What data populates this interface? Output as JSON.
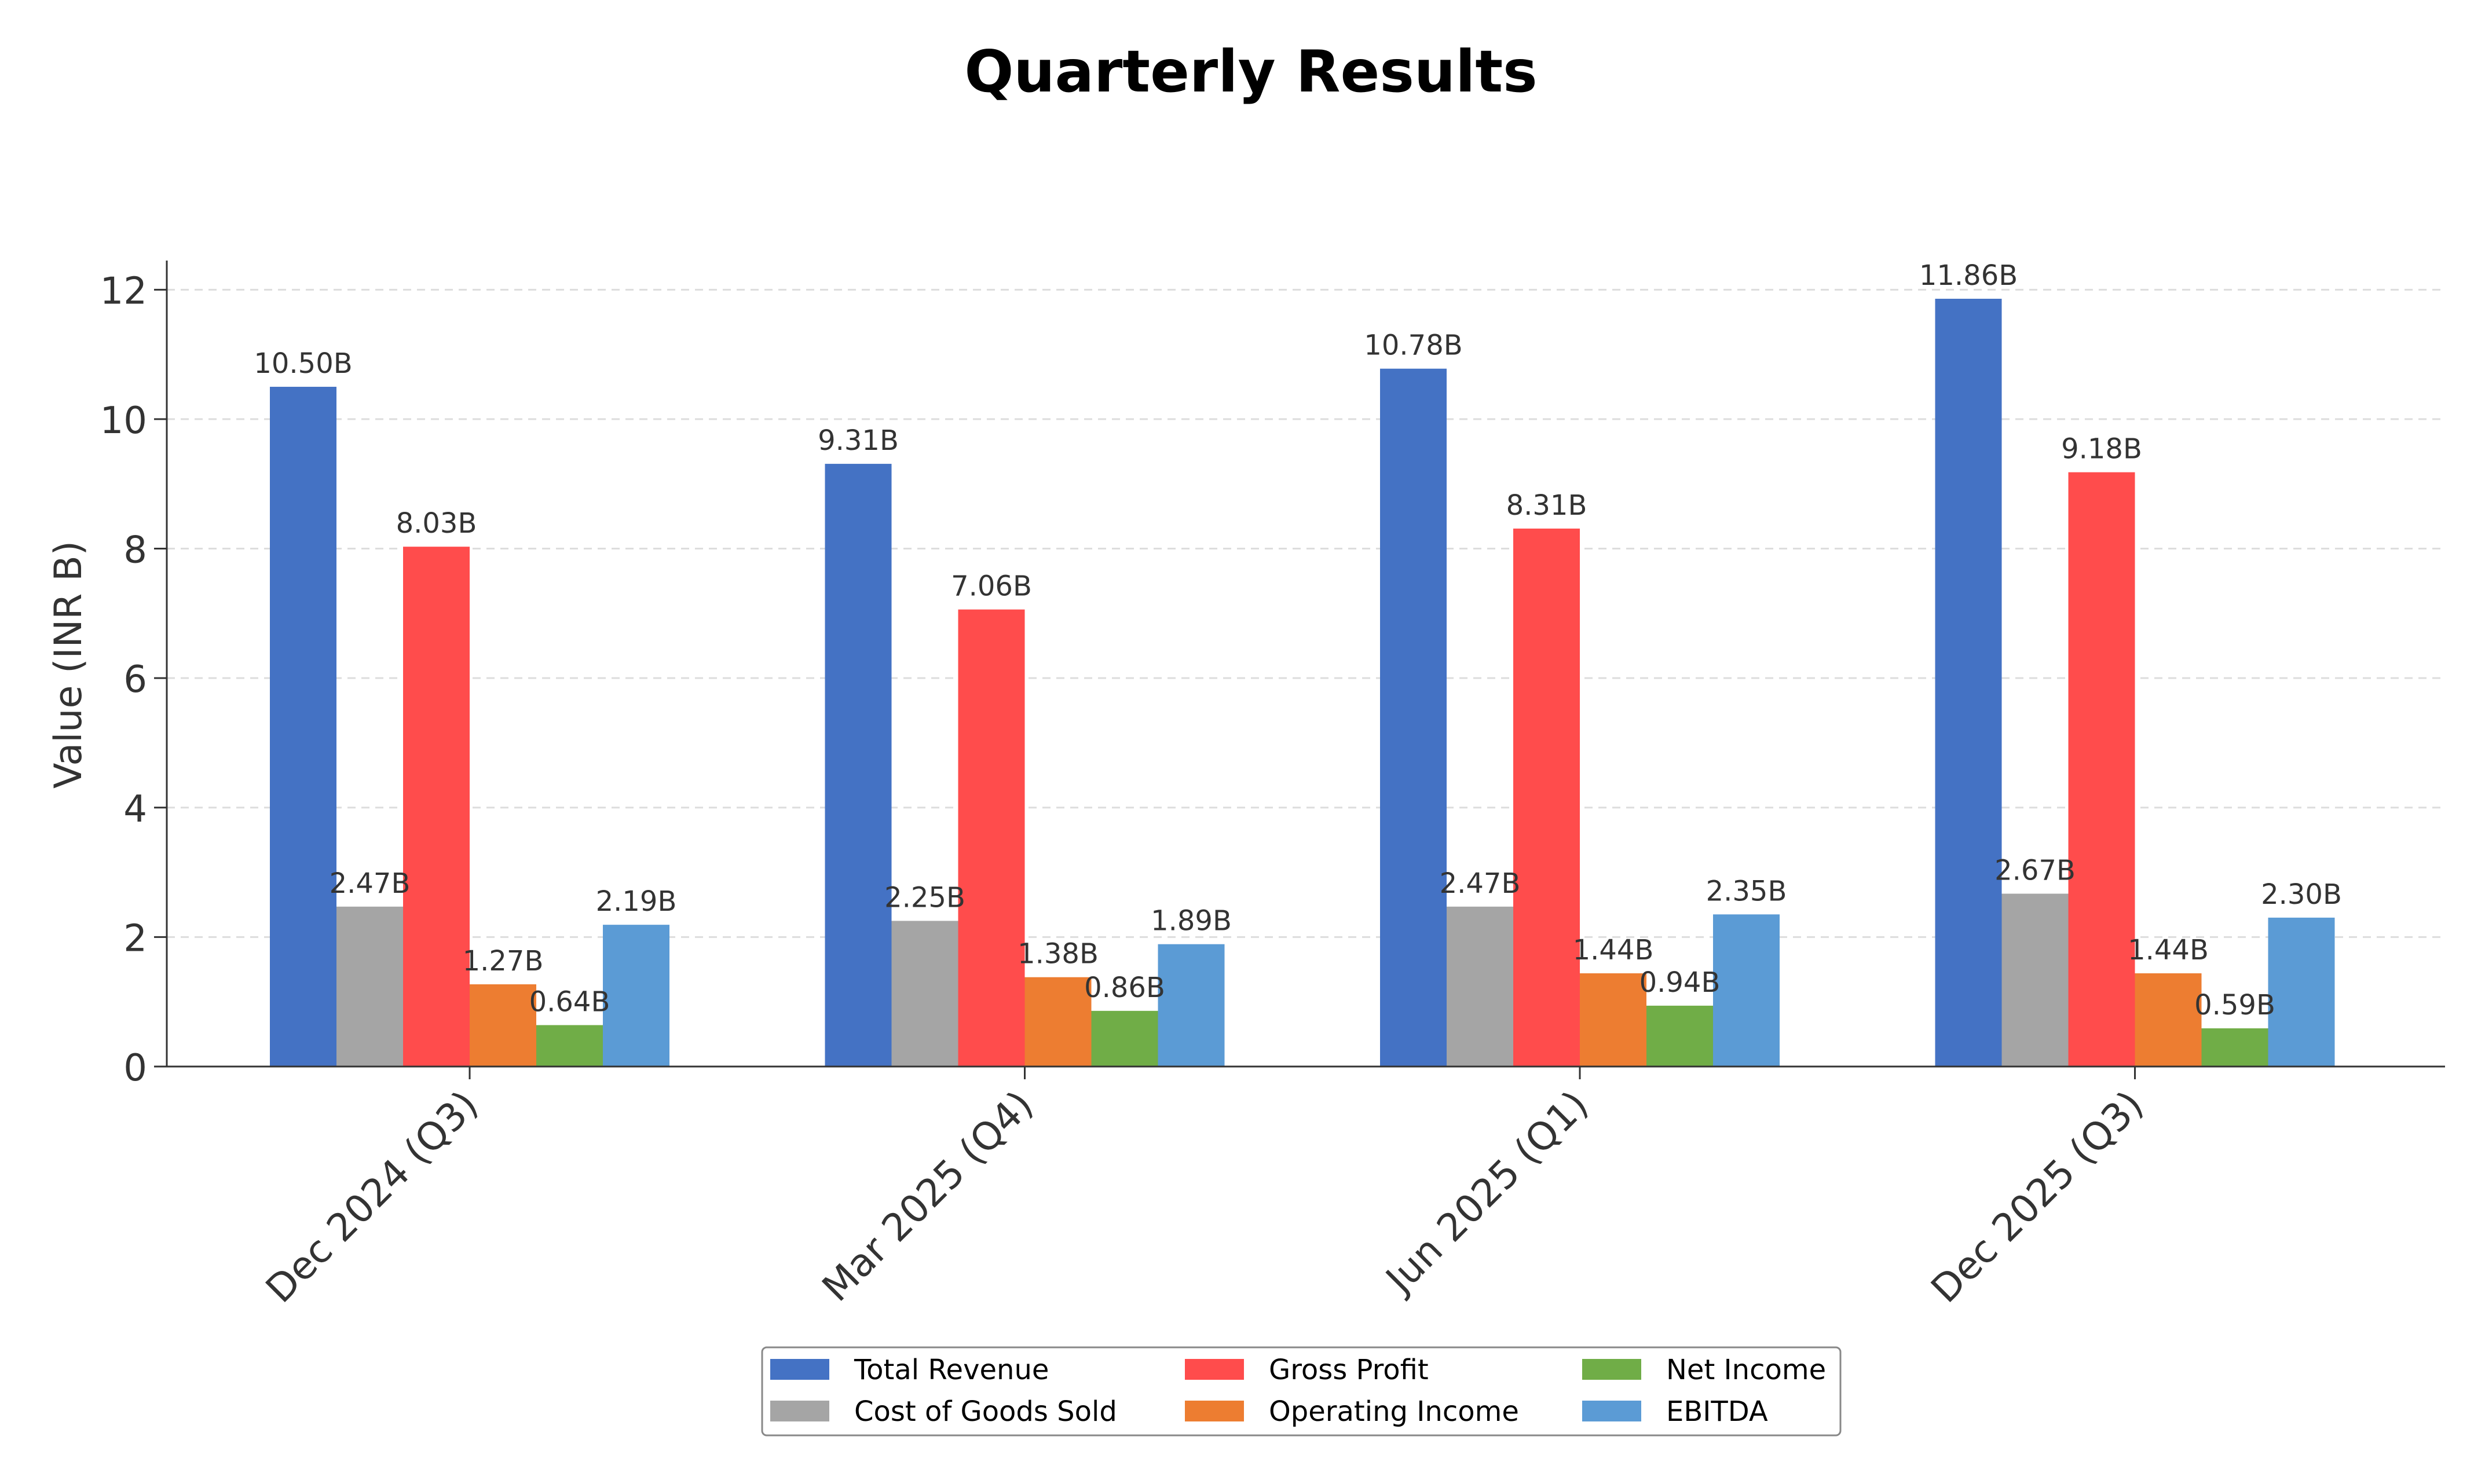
{
  "chart_data": {
    "type": "bar",
    "title": "Quarterly Results",
    "xlabel": "",
    "ylabel": "Value (INR B)",
    "ylim": [
      0,
      12.45
    ],
    "yticks": [
      0,
      2,
      4,
      6,
      8,
      10,
      12
    ],
    "grid": "horizontal dashed",
    "legend_position": "bottom-center",
    "categories": [
      "Dec 2024 (Q3)",
      "Mar 2025 (Q4)",
      "Jun 2025 (Q1)",
      "Dec 2025 (Q3)"
    ],
    "series": [
      {
        "name": "Total Revenue",
        "color": "#4472C4",
        "values": [
          10.5,
          9.31,
          10.78,
          11.86
        ],
        "labels": [
          "10.50B",
          "9.31B",
          "10.78B",
          "11.86B"
        ]
      },
      {
        "name": "Cost of Goods Sold",
        "color": "#A5A5A5",
        "values": [
          2.47,
          2.25,
          2.47,
          2.67
        ],
        "labels": [
          "2.47B",
          "2.25B",
          "2.47B",
          "2.67B"
        ]
      },
      {
        "name": "Gross Profit",
        "color": "#FF4C4C",
        "values": [
          8.03,
          7.06,
          8.31,
          9.18
        ],
        "labels": [
          "8.03B",
          "7.06B",
          "8.31B",
          "9.18B"
        ]
      },
      {
        "name": "Operating Income",
        "color": "#ED7D31",
        "values": [
          1.27,
          1.38,
          1.44,
          1.44
        ],
        "labels": [
          "1.27B",
          "1.38B",
          "1.44B",
          "1.44B"
        ]
      },
      {
        "name": "Net Income",
        "color": "#70AD47",
        "values": [
          0.64,
          0.86,
          0.94,
          0.59
        ],
        "labels": [
          "0.64B",
          "0.86B",
          "0.94B",
          "0.59B"
        ]
      },
      {
        "name": "EBITDA",
        "color": "#5B9BD5",
        "values": [
          2.19,
          1.89,
          2.35,
          2.3
        ],
        "labels": [
          "2.19B",
          "1.89B",
          "2.35B",
          "2.30B"
        ]
      }
    ]
  }
}
